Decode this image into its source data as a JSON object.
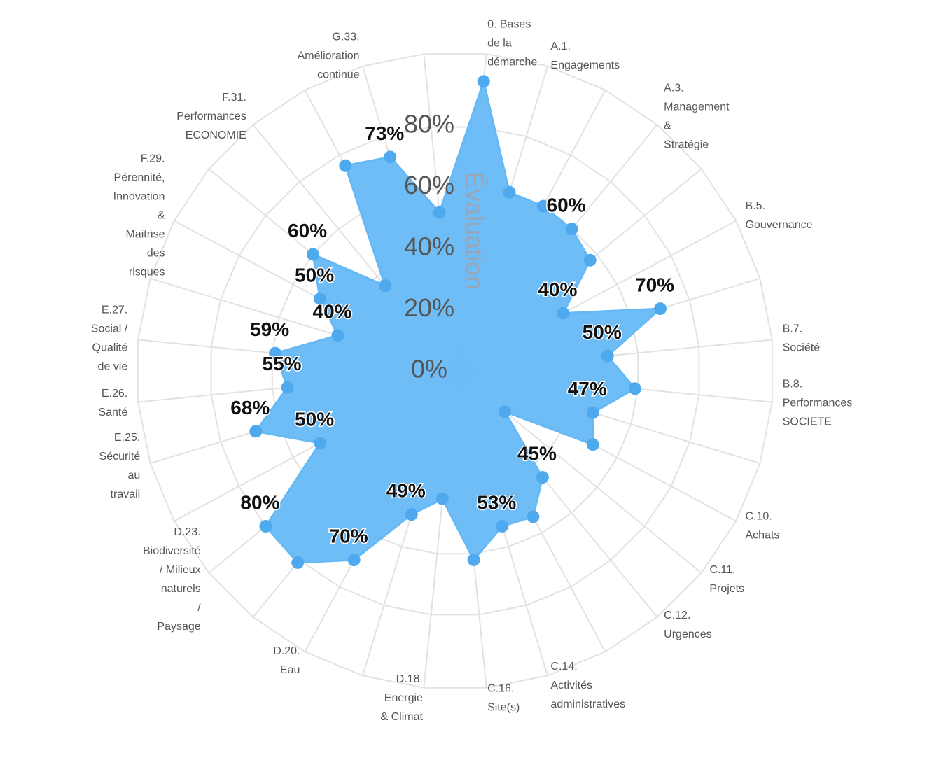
{
  "chart_data": {
    "type": "radar",
    "ylabel": "Évaluation",
    "categories": [
      [
        "0. Bases",
        "de la",
        "démarche"
      ],
      [
        "A.1.",
        "Engagements"
      ],
      null,
      [
        "A.3.",
        "Management",
        "&",
        "Stratégie"
      ],
      null,
      [
        "B.5.",
        "Gouvernance"
      ],
      null,
      [
        "B.7.",
        "Société"
      ],
      [
        "B.8.",
        "Performances",
        "SOCIETE"
      ],
      null,
      [
        "C.10.",
        "Achats"
      ],
      [
        "C.11.",
        "Projets"
      ],
      [
        "C.12.",
        "Urgences"
      ],
      null,
      [
        "C.14.",
        "Activités",
        "administratives"
      ],
      [
        "C.16.",
        "Site(s)"
      ],
      [
        "D.18.",
        "Energie",
        "& Climat"
      ],
      null,
      [
        "D.20.",
        "Eau"
      ],
      null,
      [
        "D.23.",
        "Biodiversité",
        "/ Milieux",
        "naturels",
        "/",
        "Paysage"
      ],
      null,
      [
        "E.25.",
        "Sécurité",
        "au",
        "travail"
      ],
      [
        "E.26.",
        "Santé"
      ],
      [
        "E.27.",
        "Social /",
        "Qualité",
        "de vie"
      ],
      null,
      [
        "F.29.",
        "Pérennité,",
        "Innovation",
        "&",
        "Maitrise",
        "des",
        "risques"
      ],
      null,
      [
        "F.31.",
        "Performances",
        "ECONOMIE"
      ],
      null,
      [
        "G.33.",
        "Amélioration",
        "continue"
      ],
      null
    ],
    "series": [
      {
        "color": "#66b9f5",
        "values": [
          95,
          61,
          61,
          60,
          57,
          40,
          70,
          50,
          59,
          47,
          51,
          21,
          45,
          54,
          53,
          62,
          42,
          49,
          70,
          81,
          80,
          50,
          68,
          55,
          59,
          40,
          50,
          60,
          36,
          76,
          73,
          52
        ],
        "value_labels": [
          null,
          null,
          null,
          "60%",
          null,
          "40%",
          "70%",
          "50%",
          null,
          "47%",
          null,
          null,
          "45%",
          null,
          "53%",
          null,
          null,
          "49%",
          "70%",
          null,
          "80%",
          "50%",
          "68%",
          "55%",
          "59%",
          "40%",
          "50%",
          "60%",
          null,
          null,
          "73%",
          null
        ]
      }
    ],
    "ylim": [
      0,
      104
    ],
    "yticks": [
      {
        "value": 0,
        "label": "0%"
      },
      {
        "value": 20,
        "label": "20%"
      },
      {
        "value": 40,
        "label": "40%"
      },
      {
        "value": 60,
        "label": "60%"
      },
      {
        "value": 80,
        "label": "80%"
      }
    ],
    "grid": true
  }
}
